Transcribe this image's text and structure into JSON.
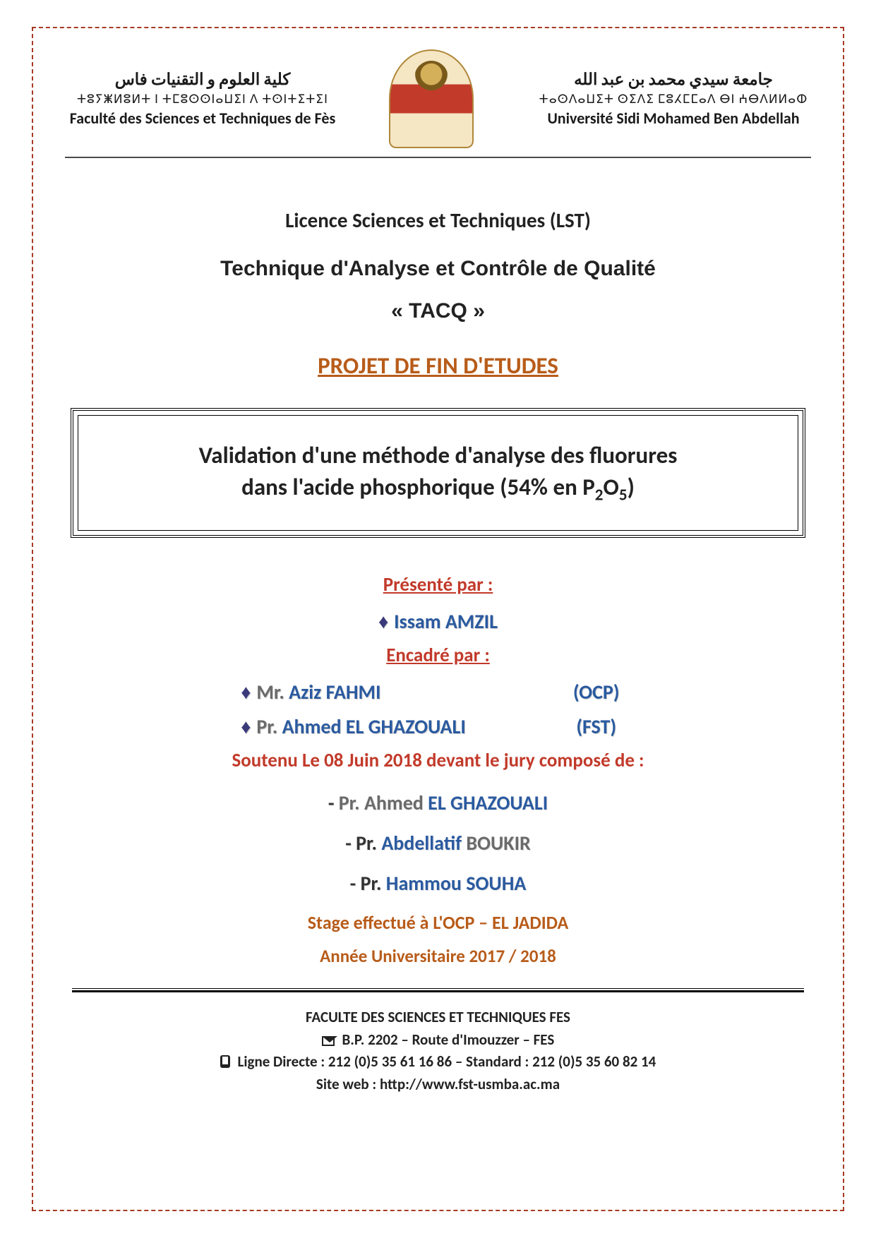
{
  "colors": {
    "border_dash": "#a73a24",
    "accent_orange": "#b85c1a",
    "accent_red": "#c23a2a",
    "accent_blue": "#2a5aa0",
    "text": "#222222",
    "header_rule": "#4a4a4a"
  },
  "header": {
    "left": {
      "arabic": "كلية العلوم و التقنيات فاس",
      "tifinagh": "ⵜⵓⵢⵥⵍⵓⵍⵜ ⵏ ⵜⵎⵓⵙⵙⵏⴰⵡⵉⵏ ⴷ ⵜⵙⵏⵜⵉⵜⵉⵏ",
      "french": "Faculté des Sciences et Techniques de Fès"
    },
    "right": {
      "arabic": "جامعة سيدي محمد بن عبد الله",
      "tifinagh": "ⵜⴰⵙⴷⴰⵡⵉⵜ ⵙⵉⴷⵉ ⵎⵓⵃⵎⵎⴰⴷ ⴱⵏ ⵄⴱⴷⵍⵍⴰⵀ",
      "french": "Université Sidi Mohamed Ben Abdellah"
    }
  },
  "degree": {
    "lst": "Licence Sciences et Techniques (LST)",
    "program": "Technique d'Analyse et Contrôle de Qualité",
    "abbr": "« TACQ »",
    "projet": "PROJET DE FIN D'ETUDES"
  },
  "title": {
    "line1": "Validation d'une méthode d'analyse des fluorures",
    "line2_prefix": "dans l'acide phosphorique (54% en P",
    "line2_sub1": "2",
    "line2_mid": "O",
    "line2_sub2": "5",
    "line2_suffix": ")"
  },
  "presented": {
    "heading": "Présenté par :",
    "author": "Issam AMZIL"
  },
  "supervised": {
    "heading": "Encadré par :",
    "rows": [
      {
        "prefix": "Mr.",
        "name": "Aziz FAHMI",
        "org": "(OCP)"
      },
      {
        "prefix": "Pr.",
        "name": "Ahmed EL GHAZOUALI",
        "org": "(FST)"
      }
    ]
  },
  "defense": {
    "line": "Soutenu Le 08 Juin 2018 devant le jury composé de :",
    "jury": [
      {
        "prefix": "Pr.",
        "first": "Ahmed",
        "rest": "EL GHAZOUALI"
      },
      {
        "prefix": "Pr.",
        "first": "Abdellatif",
        "rest": "BOUKIR"
      },
      {
        "prefix": "Pr.",
        "first": "Hammou",
        "rest": "SOUHA"
      }
    ]
  },
  "stage": "Stage effectué à L'OCP – EL JADIDA",
  "year": "Année Universitaire 2017 / 2018",
  "footer": {
    "l1": "FACULTE DES SCIENCES ET TECHNIQUES FES",
    "l2": "B.P. 2202 – Route d'Imouzzer – FES",
    "l3": "Ligne Directe : 212 (0)5 35 61 16 86 – Standard : 212 (0)5 35 60 82 14",
    "l4": "Site web : http://www.fst-usmba.ac.ma"
  }
}
